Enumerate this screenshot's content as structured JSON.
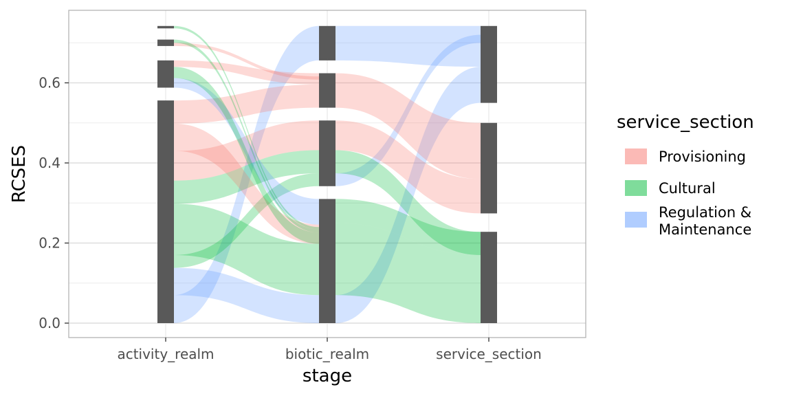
{
  "chart_data": {
    "type": "alluvial",
    "xlabel": "stage",
    "ylabel": "RCSES",
    "stages": [
      "activity_realm",
      "biotic_realm",
      "service_section"
    ],
    "yticks": [
      "0.0",
      "0.2",
      "0.4",
      "0.6"
    ],
    "ylim": [
      -0.035,
      0.785
    ],
    "grid": true,
    "legend": {
      "title": "service_section",
      "position": "right",
      "entries": [
        {
          "label_lines": [
            "Provisioning"
          ],
          "color": "#f8766d"
        },
        {
          "label_lines": [
            "Cultural"
          ],
          "color": "#00ba38"
        },
        {
          "label_lines": [
            "Regulation &",
            "Maintenance"
          ],
          "color": "#619cff"
        }
      ]
    },
    "strata": [
      [
        {
          "min": 0.0,
          "max": 0.556
        },
        {
          "min": 0.588,
          "max": 0.656
        },
        {
          "min": 0.692,
          "max": 0.708
        },
        {
          "min": 0.736,
          "max": 0.742
        }
      ],
      [
        {
          "min": 0.0,
          "max": 0.31
        },
        {
          "min": 0.342,
          "max": 0.506
        },
        {
          "min": 0.538,
          "max": 0.624
        },
        {
          "min": 0.656,
          "max": 0.742
        }
      ],
      [
        {
          "min": 0.0,
          "max": 0.228
        },
        {
          "min": 0.274,
          "max": 0.5
        },
        {
          "min": 0.55,
          "max": 0.742
        }
      ]
    ],
    "flows": [
      {
        "from": 0,
        "to": 1,
        "group": 2,
        "a": [
          0.0,
          0.07
        ],
        "b": [
          0.656,
          0.742
        ]
      },
      {
        "from": 0,
        "to": 1,
        "group": 2,
        "a": [
          0.07,
          0.138
        ],
        "b": [
          0.0,
          0.07
        ]
      },
      {
        "from": 0,
        "to": 1,
        "group": 1,
        "a": [
          0.138,
          0.17
        ],
        "b": [
          0.342,
          0.374
        ]
      },
      {
        "from": 0,
        "to": 1,
        "group": 1,
        "a": [
          0.17,
          0.298
        ],
        "b": [
          0.07,
          0.198
        ]
      },
      {
        "from": 0,
        "to": 1,
        "group": 1,
        "a": [
          0.298,
          0.356
        ],
        "b": [
          0.374,
          0.432
        ]
      },
      {
        "from": 0,
        "to": 1,
        "group": 0,
        "a": [
          0.356,
          0.43
        ],
        "b": [
          0.432,
          0.506
        ]
      },
      {
        "from": 0,
        "to": 1,
        "group": 0,
        "a": [
          0.43,
          0.498
        ],
        "b": [
          0.198,
          0.246
        ]
      },
      {
        "from": 0,
        "to": 1,
        "group": 0,
        "a": [
          0.498,
          0.556
        ],
        "b": [
          0.538,
          0.596
        ]
      },
      {
        "from": 0,
        "to": 1,
        "group": 2,
        "a": [
          0.588,
          0.612
        ],
        "b": [
          0.246,
          0.31
        ]
      },
      {
        "from": 0,
        "to": 1,
        "group": 1,
        "a": [
          0.612,
          0.64
        ],
        "b": [
          0.198,
          0.226
        ]
      },
      {
        "from": 0,
        "to": 1,
        "group": 0,
        "a": [
          0.64,
          0.656
        ],
        "b": [
          0.596,
          0.624
        ]
      },
      {
        "from": 0,
        "to": 1,
        "group": 0,
        "a": [
          0.692,
          0.7
        ],
        "b": [
          0.608,
          0.616
        ]
      },
      {
        "from": 0,
        "to": 1,
        "group": 1,
        "a": [
          0.7,
          0.708
        ],
        "b": [
          0.226,
          0.234
        ]
      },
      {
        "from": 0,
        "to": 1,
        "group": 1,
        "a": [
          0.736,
          0.742
        ],
        "b": [
          0.234,
          0.24
        ]
      },
      {
        "from": 1,
        "to": 2,
        "group": 2,
        "a": [
          0.0,
          0.07
        ],
        "b": [
          0.55,
          0.64
        ]
      },
      {
        "from": 1,
        "to": 2,
        "group": 1,
        "a": [
          0.07,
          0.25
        ],
        "b": [
          0.0,
          0.17
        ]
      },
      {
        "from": 1,
        "to": 2,
        "group": 1,
        "a": [
          0.25,
          0.31
        ],
        "b": [
          0.17,
          0.228
        ]
      },
      {
        "from": 1,
        "to": 2,
        "group": 2,
        "a": [
          0.342,
          0.374
        ],
        "b": [
          0.7,
          0.72
        ]
      },
      {
        "from": 1,
        "to": 2,
        "group": 1,
        "a": [
          0.374,
          0.432
        ],
        "b": [
          0.17,
          0.228
        ]
      },
      {
        "from": 1,
        "to": 2,
        "group": 0,
        "a": [
          0.432,
          0.506
        ],
        "b": [
          0.274,
          0.36
        ]
      },
      {
        "from": 1,
        "to": 2,
        "group": 0,
        "a": [
          0.538,
          0.624
        ],
        "b": [
          0.36,
          0.5
        ]
      },
      {
        "from": 1,
        "to": 2,
        "group": 2,
        "a": [
          0.656,
          0.742
        ],
        "b": [
          0.64,
          0.742
        ]
      }
    ]
  }
}
